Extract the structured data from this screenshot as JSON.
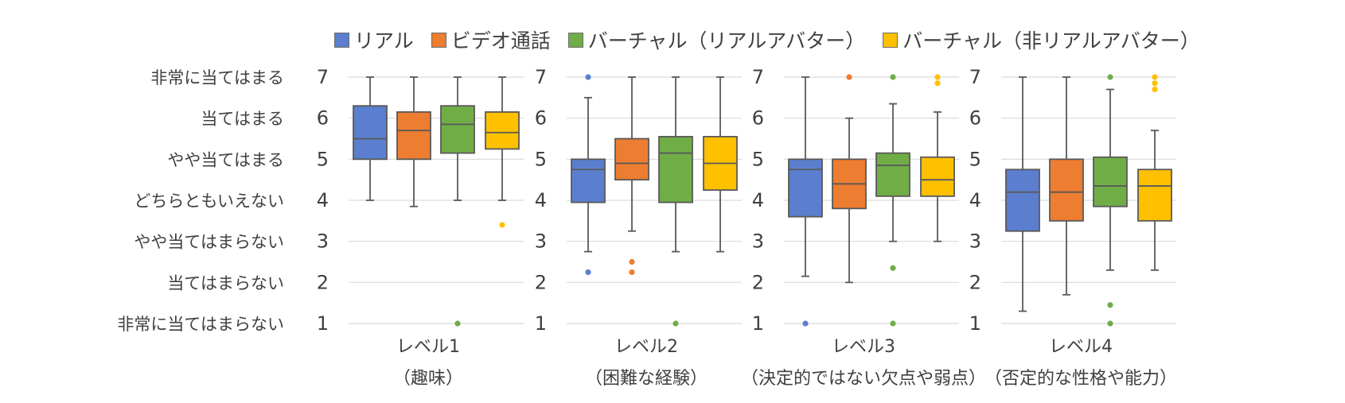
{
  "chart_data": {
    "type": "boxplot",
    "series": [
      {
        "name": "リアル",
        "color": "#5b7fce"
      },
      {
        "name": "ビデオ通話",
        "color": "#ed7d31"
      },
      {
        "name": "バーチャル（リアルアバター）",
        "color": "#70ad47"
      },
      {
        "name": "バーチャル（非リアルアバター）",
        "color": "#ffc000"
      }
    ],
    "ylim": [
      1,
      7
    ],
    "yticks": [
      1,
      2,
      3,
      4,
      5,
      6,
      7
    ],
    "ycategories": [
      "非常に当てはまらない",
      "当てはまらない",
      "やや当てはまらない",
      "どちらともいえない",
      "やや当てはまる",
      "当てはまる",
      "非常に当てはまる"
    ],
    "panels": [
      {
        "label": "レベル1",
        "sublabel": "（趣味）",
        "boxes": [
          {
            "min": 4,
            "q1": 5,
            "median": 5.5,
            "q3": 6.3,
            "max": 7,
            "outliers": []
          },
          {
            "min": 3.85,
            "q1": 5,
            "median": 5.7,
            "q3": 6.15,
            "max": 7,
            "outliers": []
          },
          {
            "min": 4,
            "q1": 5.15,
            "median": 5.85,
            "q3": 6.3,
            "max": 7,
            "outliers": [
              1
            ]
          },
          {
            "min": 4,
            "q1": 5.25,
            "median": 5.65,
            "q3": 6.15,
            "max": 7,
            "outliers": [
              3.4
            ]
          }
        ]
      },
      {
        "label": "レベル2",
        "sublabel": "（困難な経験）",
        "boxes": [
          {
            "min": 2.75,
            "q1": 3.95,
            "median": 4.75,
            "q3": 5,
            "max": 6.5,
            "outliers": [
              7,
              2.25
            ]
          },
          {
            "min": 3.25,
            "q1": 4.5,
            "median": 4.9,
            "q3": 5.5,
            "max": 7,
            "outliers": [
              2.5,
              2.25
            ]
          },
          {
            "min": 2.75,
            "q1": 3.95,
            "median": 5.15,
            "q3": 5.55,
            "max": 7,
            "outliers": [
              1
            ]
          },
          {
            "min": 2.75,
            "q1": 4.25,
            "median": 4.9,
            "q3": 5.55,
            "max": 7,
            "outliers": []
          }
        ]
      },
      {
        "label": "レベル3",
        "sublabel": "（決定的ではない欠点や弱点）",
        "boxes": [
          {
            "min": 2.15,
            "q1": 3.6,
            "median": 4.75,
            "q3": 5,
            "max": 7,
            "outliers": [
              1
            ]
          },
          {
            "min": 2,
            "q1": 3.8,
            "median": 4.4,
            "q3": 5,
            "max": 6,
            "outliers": [
              7
            ]
          },
          {
            "min": 3,
            "q1": 4.1,
            "median": 4.85,
            "q3": 5.15,
            "max": 6.35,
            "outliers": [
              7,
              2.35,
              1
            ]
          },
          {
            "min": 3,
            "q1": 4.1,
            "median": 4.5,
            "q3": 5.05,
            "max": 6.15,
            "outliers": [
              7,
              6.85
            ]
          }
        ]
      },
      {
        "label": "レベル4",
        "sublabel": "（否定的な性格や能力）",
        "boxes": [
          {
            "min": 1.3,
            "q1": 3.25,
            "median": 4.2,
            "q3": 4.75,
            "max": 7,
            "outliers": []
          },
          {
            "min": 1.7,
            "q1": 3.5,
            "median": 4.2,
            "q3": 5,
            "max": 7,
            "outliers": []
          },
          {
            "min": 2.3,
            "q1": 3.85,
            "median": 4.35,
            "q3": 5.05,
            "max": 6.7,
            "outliers": [
              7,
              1.45,
              1
            ]
          },
          {
            "min": 2.3,
            "q1": 3.5,
            "median": 4.35,
            "q3": 4.75,
            "max": 5.7,
            "outliers": [
              7,
              6.85,
              6.7
            ]
          }
        ]
      }
    ]
  }
}
